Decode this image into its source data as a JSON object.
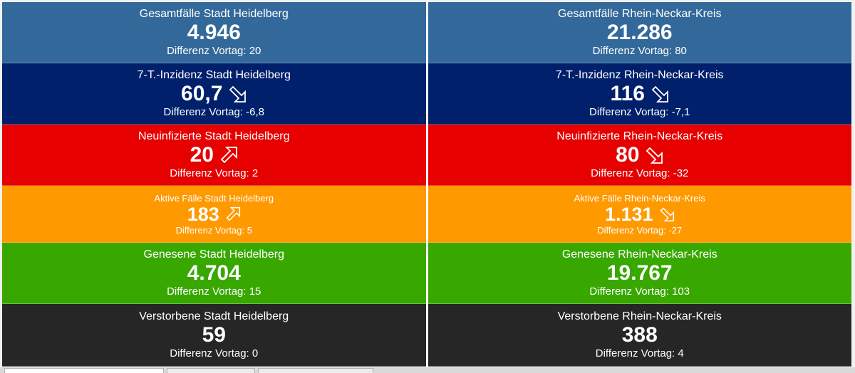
{
  "colors": {
    "total": "#33699a",
    "incidence": "#00206c",
    "new": "#e60000",
    "active": "#ff9900",
    "recovered": "#38a800",
    "deceased": "#262626"
  },
  "tiles": {
    "total_hd": {
      "title": "Gesamtfälle Stadt Heidelberg",
      "value": "4.946",
      "diff": "Differenz Vortag: 20"
    },
    "total_rnk": {
      "title": "Gesamtfälle Rhein-Neckar-Kreis",
      "value": "21.286",
      "diff": "Differenz Vortag: 80"
    },
    "incidence_hd": {
      "title": "7-T.-Inzidenz Stadt Heidelberg",
      "value": "60,7",
      "icon": "arrow-down-right-icon",
      "diff": "Differenz Vortag: -6,8"
    },
    "incidence_rnk": {
      "title": "7-T.-Inzidenz Rhein-Neckar-Kreis",
      "value": "116",
      "icon": "arrow-down-right-icon",
      "diff": "Differenz Vortag: -7,1"
    },
    "new_hd": {
      "title": "Neuinfizierte Stadt Heidelberg",
      "value": "20",
      "icon": "arrow-up-right-icon",
      "diff": "Differenz Vortag: 2"
    },
    "new_rnk": {
      "title": "Neuinfizierte Rhein-Neckar-Kreis",
      "value": "80",
      "icon": "arrow-down-right-icon",
      "diff": "Differenz Vortag: -32"
    },
    "active_hd": {
      "title": "Aktive Fälle Stadt Heidelberg",
      "value": "183",
      "icon": "arrow-up-right-icon",
      "diff": "Differenz Vortag: 5"
    },
    "active_rnk": {
      "title": "Aktive Fälle Rhein-Neckar-Kreis",
      "value": "1.131",
      "icon": "arrow-down-right-icon",
      "diff": "Differenz Vortag: -27"
    },
    "recovered_hd": {
      "title": "Genesene Stadt Heidelberg",
      "value": "4.704",
      "diff": "Differenz Vortag: 15"
    },
    "recovered_rnk": {
      "title": "Genesene Rhein-Neckar-Kreis",
      "value": "19.767",
      "diff": "Differenz Vortag: 103"
    },
    "deceased_hd": {
      "title": "Verstorbene Stadt Heidelberg",
      "value": "59",
      "diff": "Differenz Vortag: 0"
    },
    "deceased_rnk": {
      "title": "Verstorbene Rhein-Neckar-Kreis",
      "value": "388",
      "diff": "Differenz Vortag: 4"
    }
  }
}
